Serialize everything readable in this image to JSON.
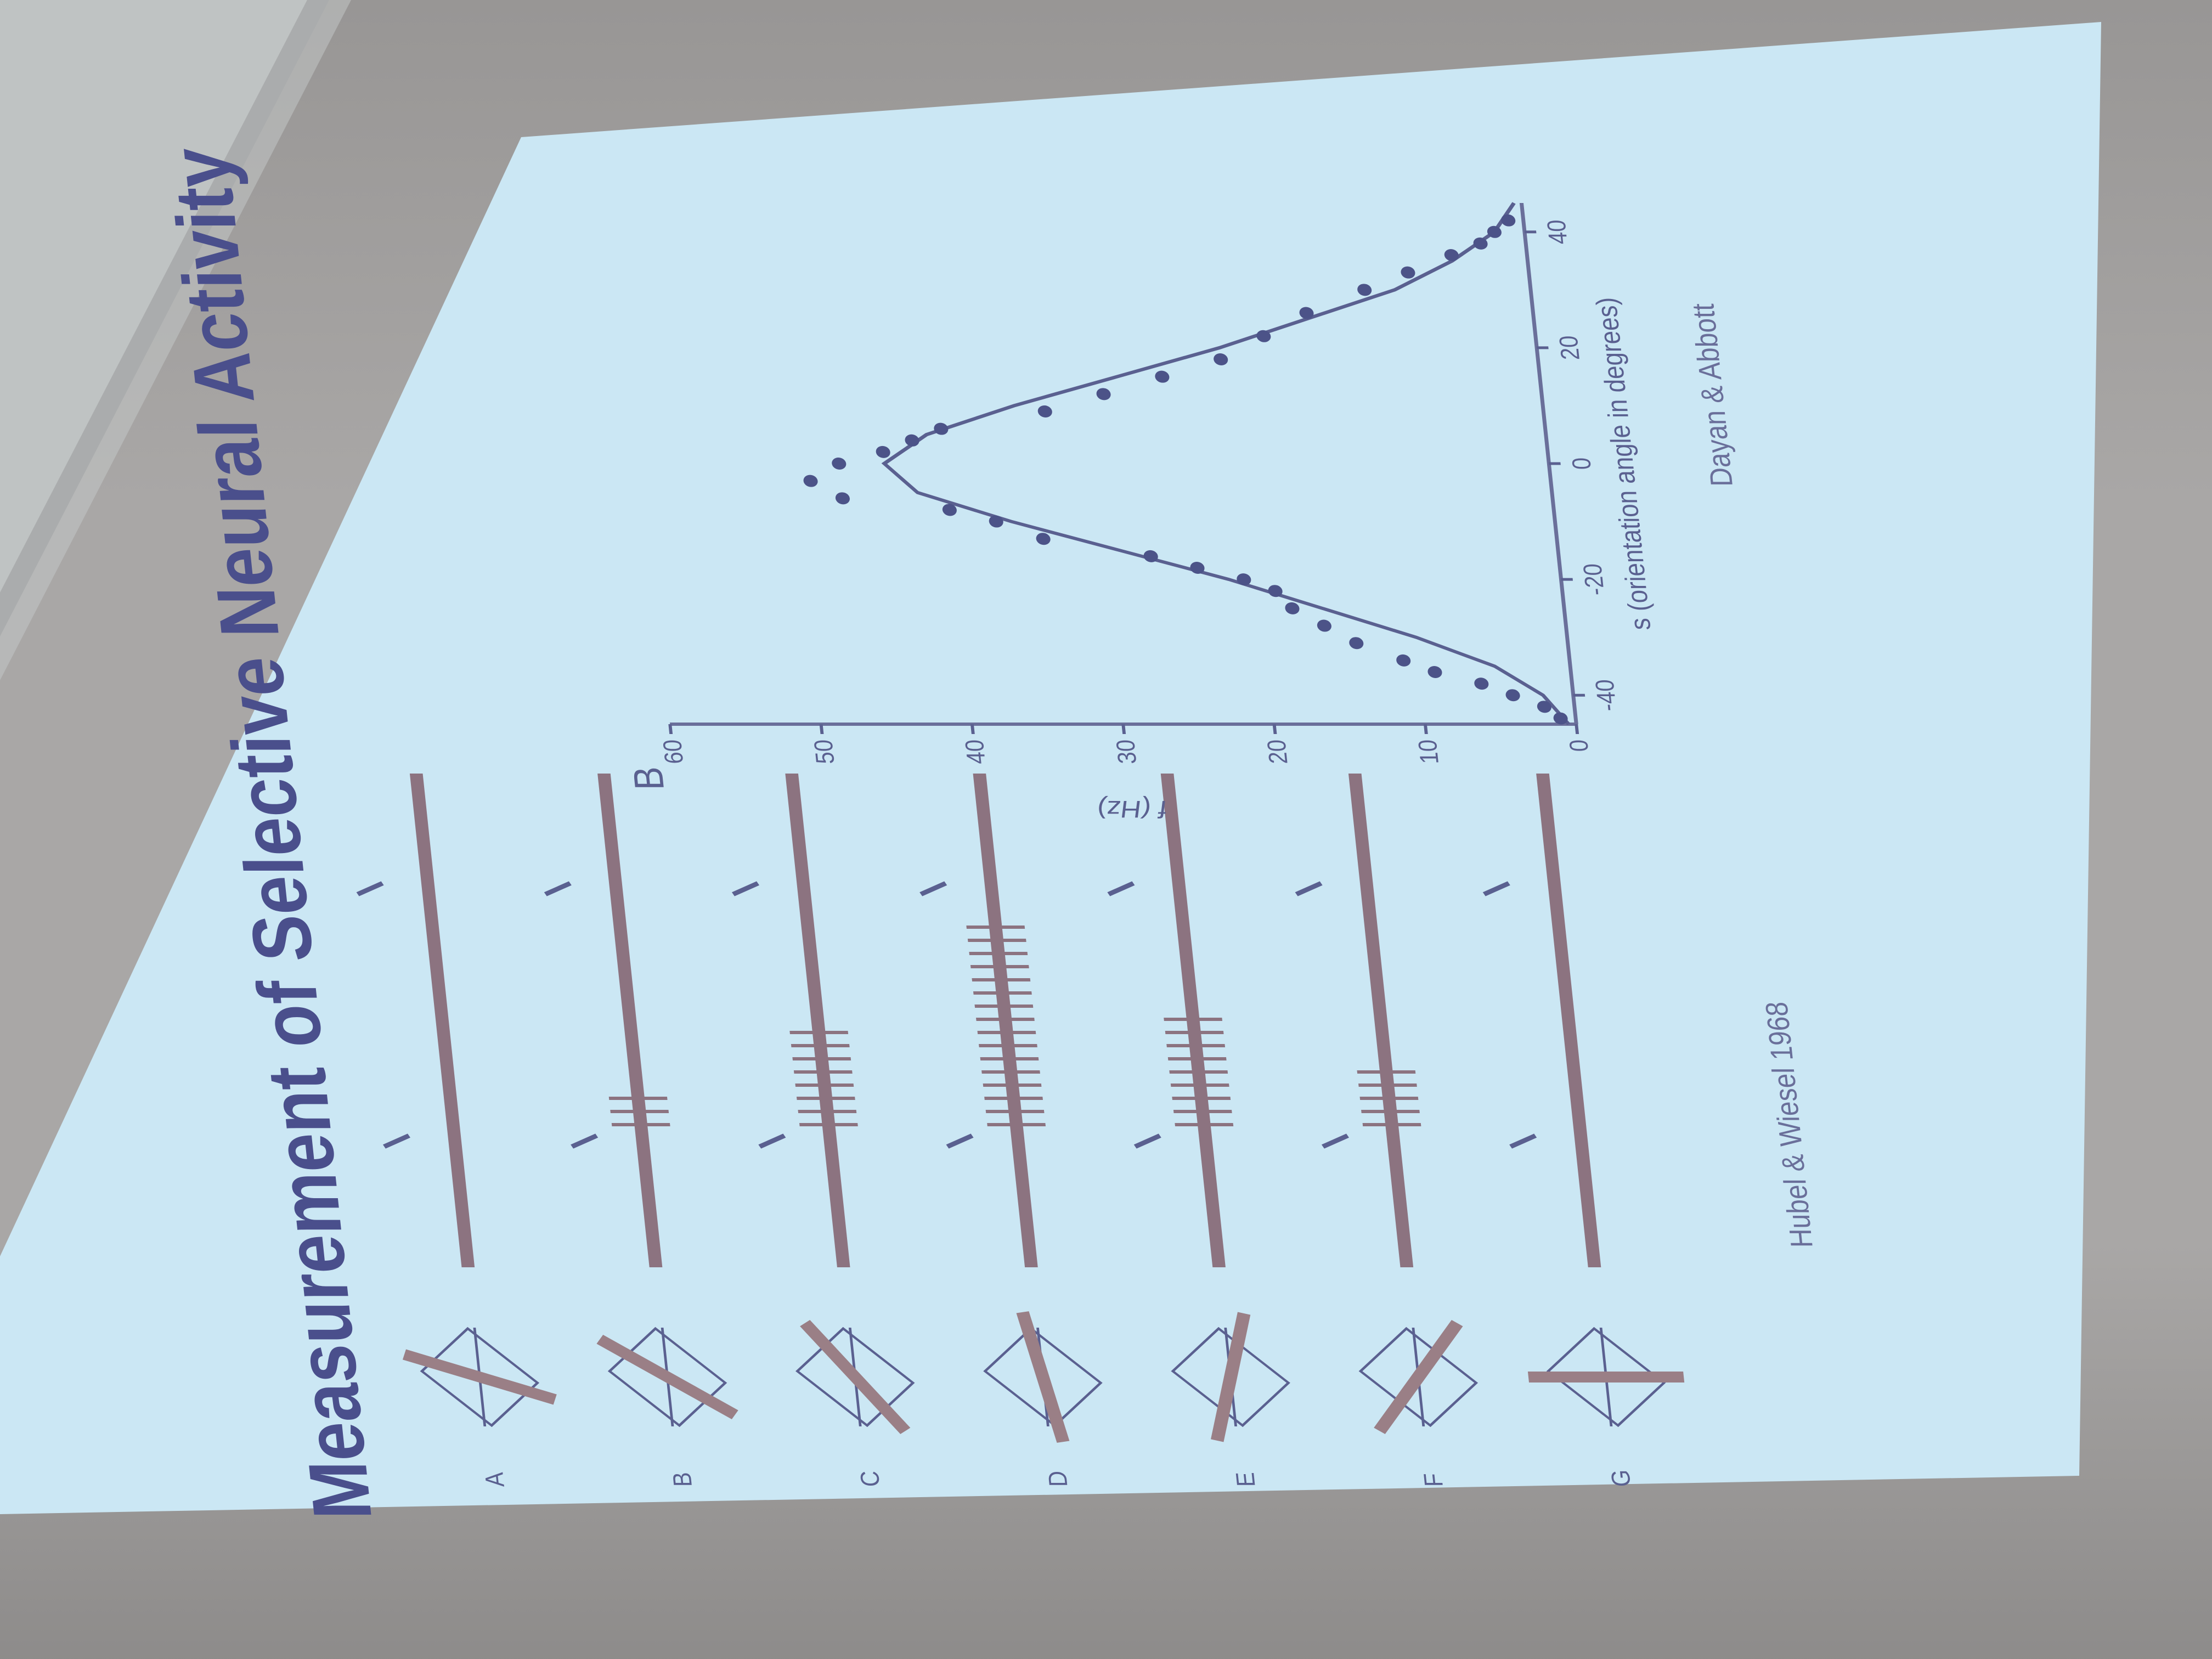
{
  "slide": {
    "title": "Measurement of Selective Neural Activity",
    "panel_b_label": "B",
    "row_labels": [
      "A",
      "B",
      "C",
      "D",
      "E",
      "F",
      "G"
    ],
    "citation_left": "Hubel & Wiesel 1968",
    "citation_right": "Dayan & Abbott"
  },
  "chart_data": {
    "type": "scatter",
    "title": "",
    "xlabel": "s (orientation angle in degrees)",
    "ylabel": "f (Hz)",
    "xlim": [
      -45,
      45
    ],
    "ylim": [
      0,
      60
    ],
    "x_ticks": [
      "-40",
      "-20",
      "0",
      "20",
      "40"
    ],
    "y_ticks": [
      "0",
      "10",
      "20",
      "30",
      "40",
      "50",
      "60"
    ],
    "grid": false,
    "series": [
      {
        "kind": "points",
        "x": [
          -44,
          -42,
          -40,
          -38,
          -36,
          -34,
          -31,
          -28,
          -25,
          -22,
          -20,
          -18,
          -16,
          -13,
          -10,
          -8,
          -6,
          -3,
          0,
          2,
          4,
          6,
          9,
          12,
          15,
          18,
          22,
          26,
          30,
          33,
          36,
          38,
          40,
          42
        ],
        "y": [
          1,
          2,
          4,
          6,
          9,
          11,
          14,
          16,
          18,
          19,
          21,
          24,
          27,
          34,
          37,
          40,
          47,
          49,
          47,
          44,
          42,
          40,
          33,
          29,
          25,
          21,
          18,
          15,
          11,
          8,
          5,
          3,
          2,
          1
        ]
      },
      {
        "kind": "fit",
        "x": [
          -45,
          -40,
          -35,
          -30,
          -25,
          -20,
          -15,
          -10,
          -5,
          0,
          5,
          10,
          15,
          20,
          25,
          30,
          35,
          40,
          45
        ],
        "y": [
          0.5,
          2,
          5,
          10,
          16,
          22,
          29,
          36,
          42,
          44,
          41,
          35,
          28,
          21,
          15,
          9,
          5,
          2,
          0.5
        ]
      }
    ]
  },
  "colors": {
    "slide_bg": "#cfeaf7",
    "title": "#4a4f8c",
    "ink": "#5a6090",
    "stimulus_bar": "#9a7f86",
    "spike_train": "#8c7380",
    "wall": "#a9a7a6"
  }
}
